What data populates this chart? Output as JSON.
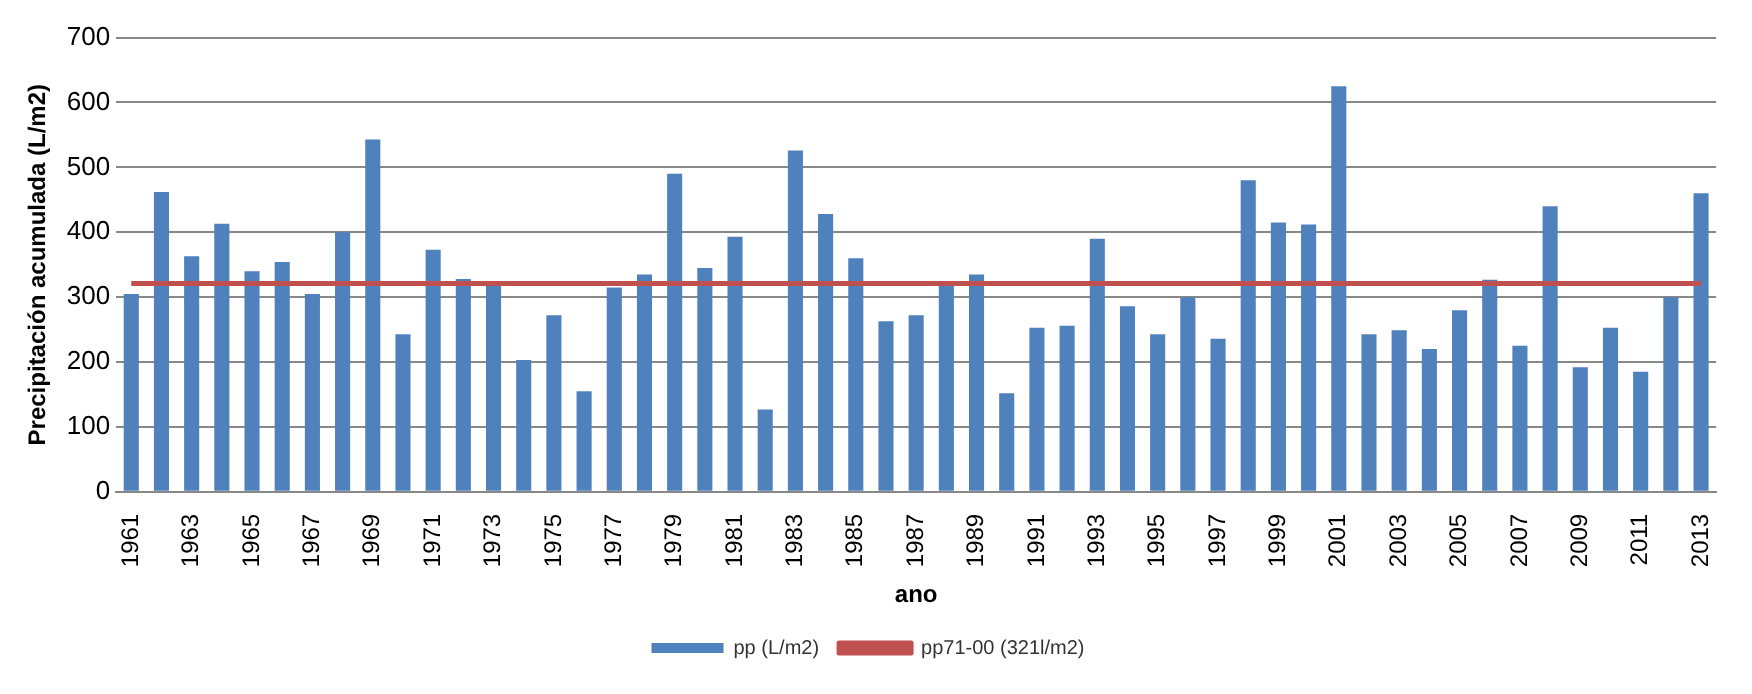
{
  "chart_data": {
    "type": "bar",
    "xlabel": "ano",
    "ylabel": "Precipitación acumulada (L/m2)",
    "categories": [
      "1961",
      null,
      "1963",
      null,
      "1965",
      null,
      "1967",
      null,
      "1969",
      null,
      "1971",
      null,
      "1973",
      null,
      "1975",
      null,
      "1977",
      null,
      "1979",
      null,
      "1981",
      null,
      "1983",
      null,
      "1985",
      null,
      "1987",
      null,
      "1989",
      null,
      "1991",
      null,
      "1993",
      null,
      "1995",
      null,
      "1997",
      null,
      "1999",
      null,
      "2001",
      null,
      "2003",
      null,
      "2005",
      null,
      "2007",
      null,
      "2009",
      null,
      "2011",
      null,
      "2013"
    ],
    "series": [
      {
        "name": "pp (L/m2)",
        "color": "#4f81bd",
        "values": [
          305,
          462,
          363,
          413,
          340,
          354,
          305,
          400,
          543,
          243,
          373,
          328,
          320,
          203,
          272,
          155,
          315,
          335,
          490,
          345,
          393,
          127,
          526,
          428,
          360,
          263,
          272,
          320,
          335,
          152,
          253,
          256,
          390,
          286,
          243,
          300,
          236,
          480,
          415,
          412,
          625,
          243,
          249,
          220,
          280,
          327,
          225,
          440,
          192,
          253,
          185,
          300,
          460
        ]
      },
      {
        "name": "pp71-00 (321l/m2)",
        "color": "#c0504d",
        "type": "line",
        "values": [
          321,
          321,
          321,
          321,
          321,
          321,
          321,
          321,
          321,
          321,
          321,
          321,
          321,
          321,
          321,
          321,
          321,
          321,
          321,
          321,
          321,
          321,
          321,
          321,
          321,
          321,
          321,
          321,
          321,
          321,
          321,
          321,
          321,
          321,
          321,
          321,
          321,
          321,
          321,
          321,
          321,
          321,
          321,
          321,
          321,
          321,
          321,
          321,
          321,
          321,
          321,
          321,
          321
        ]
      }
    ],
    "ylim": [
      0,
      700
    ],
    "yticks": [
      0,
      100,
      200,
      300,
      400,
      500,
      600,
      700
    ],
    "grid": "y",
    "legend": "bottom",
    "marker": "none"
  }
}
